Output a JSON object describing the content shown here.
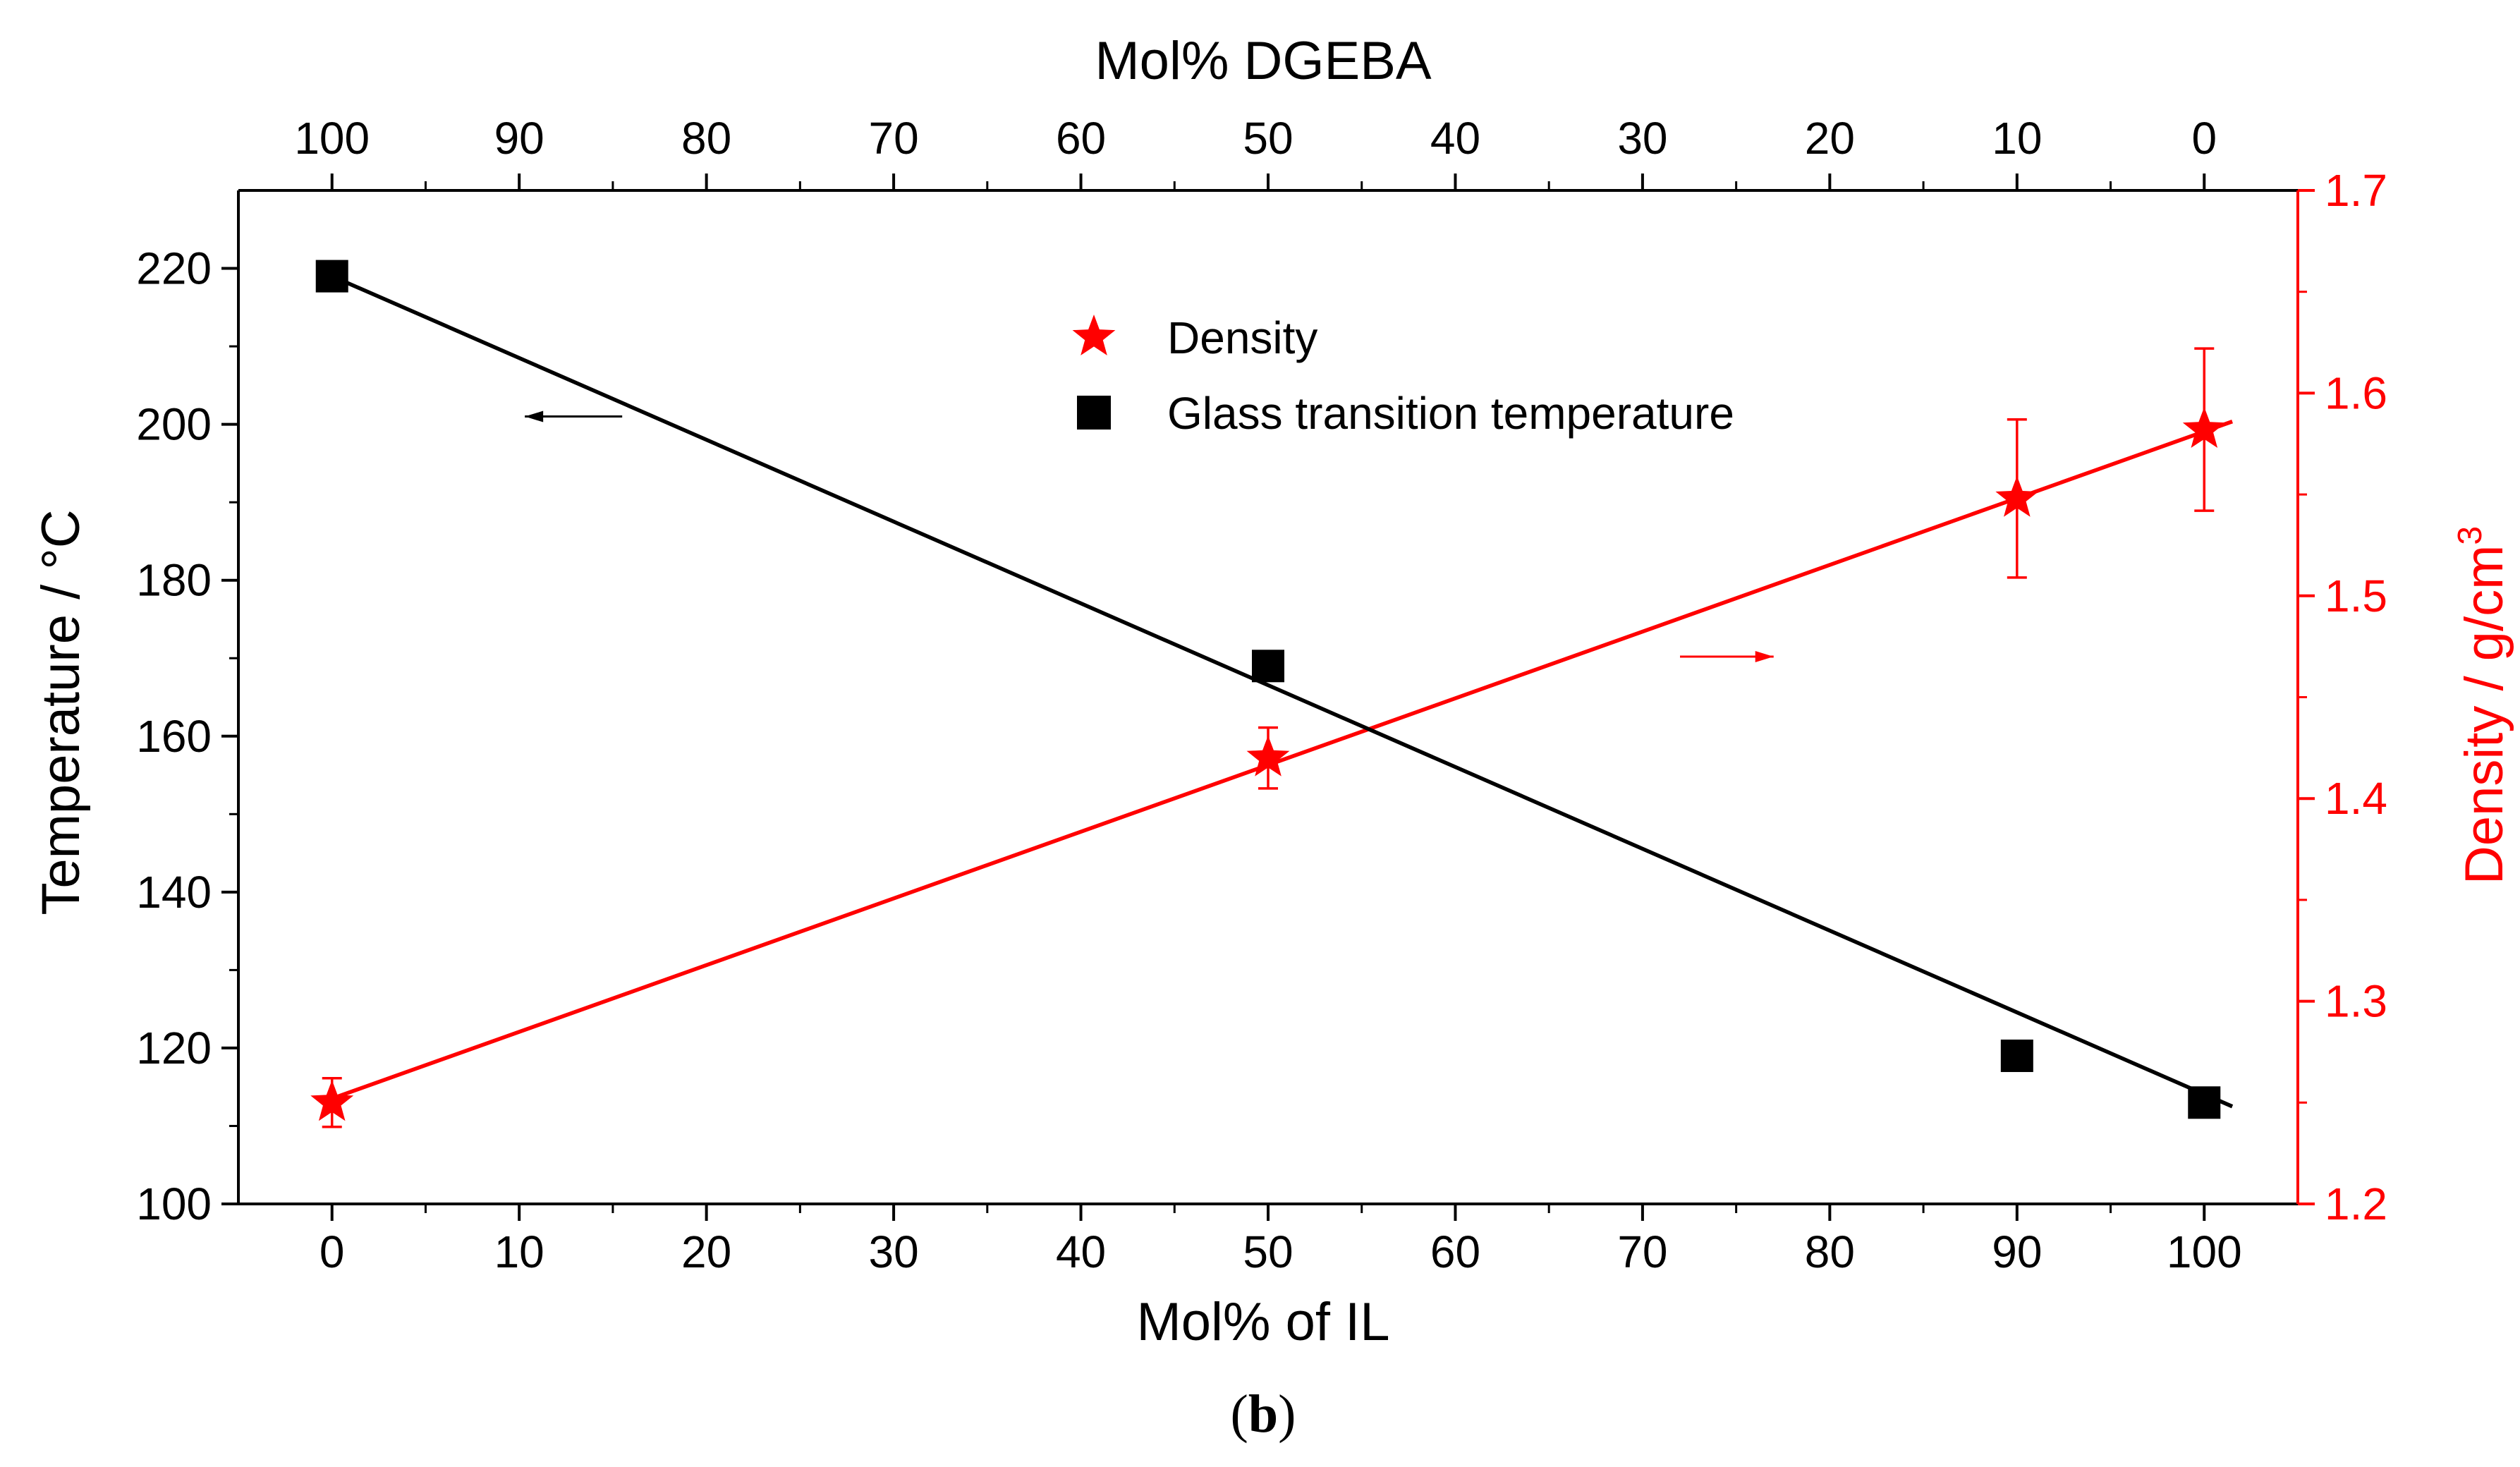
{
  "chart_data": {
    "type": "scatter",
    "title": "",
    "caption": "(b)",
    "caption_parts": {
      "open": "(",
      "letter": "b",
      "close": ")"
    },
    "xlabel": "Mol% of IL",
    "x2label": "Mol% DGEBA",
    "ylabel": "Temperature / °C",
    "y2label": {
      "text": "Density / g/cm",
      "superscript": "3"
    },
    "xlim": [
      -5,
      105
    ],
    "ylim": [
      100,
      230
    ],
    "y2lim": [
      1.2,
      1.7
    ],
    "x_ticks": [
      0,
      10,
      20,
      30,
      40,
      50,
      60,
      70,
      80,
      90,
      100
    ],
    "x_tick_labels": [
      "0",
      "10",
      "20",
      "30",
      "40",
      "50",
      "60",
      "70",
      "80",
      "90",
      "100"
    ],
    "x2_tick_labels": [
      "100",
      "90",
      "80",
      "70",
      "60",
      "50",
      "40",
      "30",
      "20",
      "10",
      "0"
    ],
    "y_ticks": [
      100,
      120,
      140,
      160,
      180,
      200,
      220
    ],
    "y_tick_labels": [
      "100",
      "120",
      "140",
      "160",
      "180",
      "200",
      "220"
    ],
    "y2_ticks": [
      1.2,
      1.3,
      1.4,
      1.5,
      1.6,
      1.7
    ],
    "y2_tick_labels": [
      "1.2",
      "1.3",
      "1.4",
      "1.5",
      "1.6",
      "1.7"
    ],
    "series": [
      {
        "name": "Density",
        "axis": "right",
        "marker": "star",
        "color": "#ff0000",
        "x": [
          0,
          50,
          90,
          100
        ],
        "values": [
          1.25,
          1.42,
          1.548,
          1.582
        ],
        "error": [
          0.012,
          0.015,
          0.039,
          0.04
        ],
        "fit": {
          "x": [
            0,
            101.5
          ],
          "y": [
            1.252,
            1.586
          ]
        }
      },
      {
        "name": "Glass transition temperature",
        "axis": "left",
        "marker": "square",
        "color": "#000000",
        "x": [
          0,
          50,
          90,
          100
        ],
        "values": [
          219,
          169,
          119,
          113
        ],
        "fit": {
          "x": [
            0,
            101.5
          ],
          "y": [
            219,
            112.5
          ]
        }
      }
    ],
    "legend": {
      "placement": "top-center",
      "order": [
        "Density",
        "Glass transition temperature"
      ]
    },
    "annotations": [
      {
        "kind": "arrow",
        "direction": "left",
        "color": "#000000",
        "target_axis": "left",
        "from": [
          15.5,
          201
        ],
        "to": [
          10.3,
          201
        ]
      },
      {
        "kind": "arrow",
        "direction": "right",
        "color": "#ff0000",
        "target_axis": "right",
        "from": [
          72,
          1.47
        ],
        "to": [
          77,
          1.47
        ]
      }
    ]
  }
}
